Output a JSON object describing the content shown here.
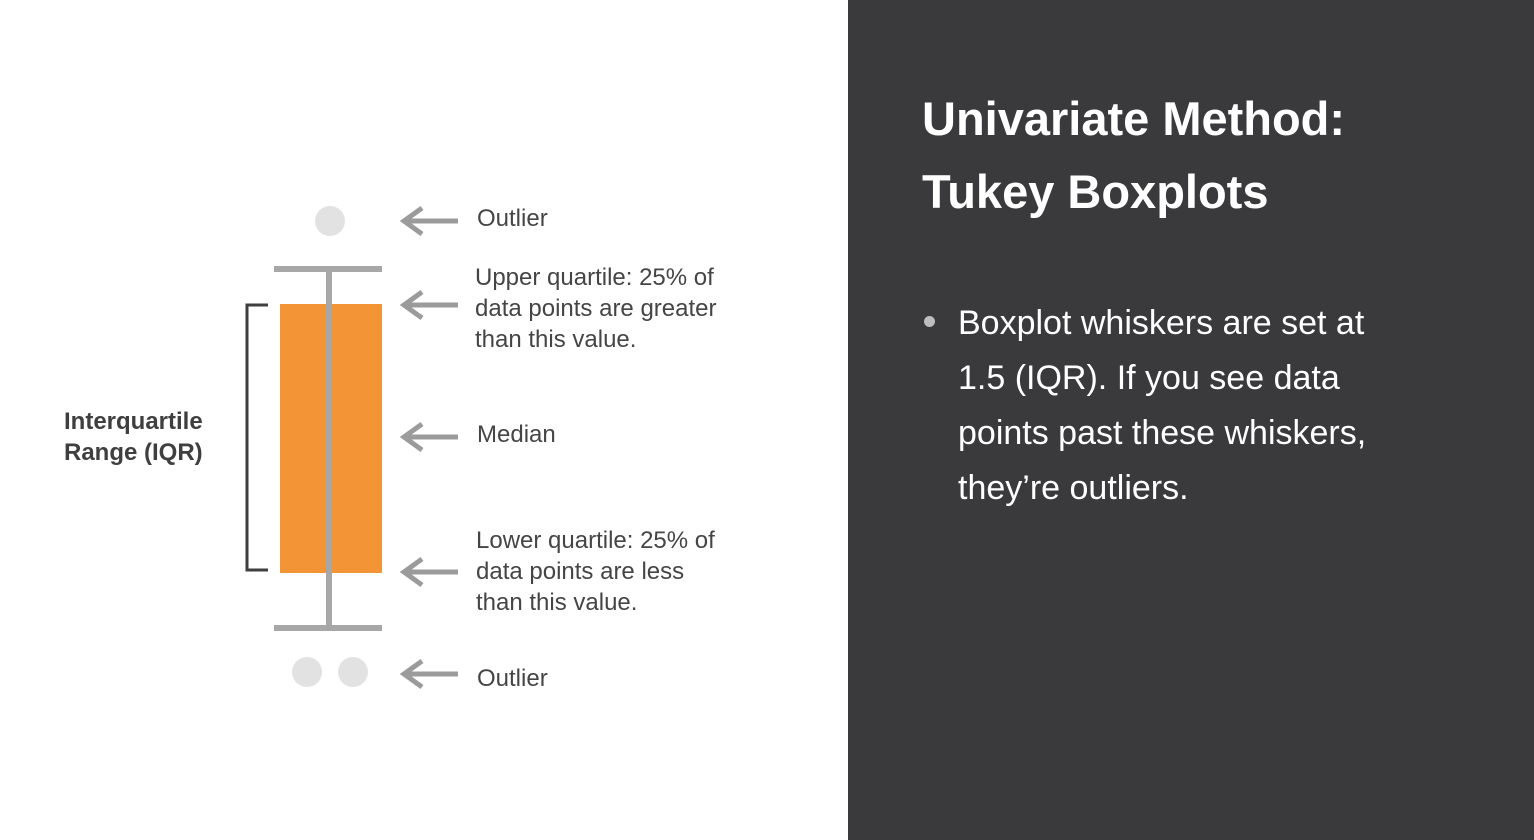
{
  "diagram": {
    "iqr_label_lines": [
      "Interquartile",
      "Range (IQR)"
    ],
    "labels": {
      "outlier_top": "Outlier",
      "upper_quartile_lines": [
        "Upper quartile: 25% of",
        "data points are greater",
        "than this value."
      ],
      "median": "Median",
      "lower_quartile_lines": [
        "Lower quartile: 25% of",
        "data points are less",
        "than this value."
      ],
      "outlier_bottom": "Outlier"
    },
    "colors": {
      "box": "#f39437",
      "whisker": "#a7a7a7",
      "outlier_dot": "#e2e2e2",
      "arrow": "#9b9b9b",
      "bracket": "#3f3f3f"
    }
  },
  "slide": {
    "title_lines": [
      "Univariate Method:",
      "Tukey Boxplots"
    ],
    "bullets": [
      {
        "lines": [
          "Boxplot whiskers are set at",
          "1.5 (IQR). If you see data",
          "points past these whiskers,",
          "they’re outliers."
        ]
      }
    ],
    "background": "#3a393c",
    "bullet_color": "#bdbdbd"
  }
}
